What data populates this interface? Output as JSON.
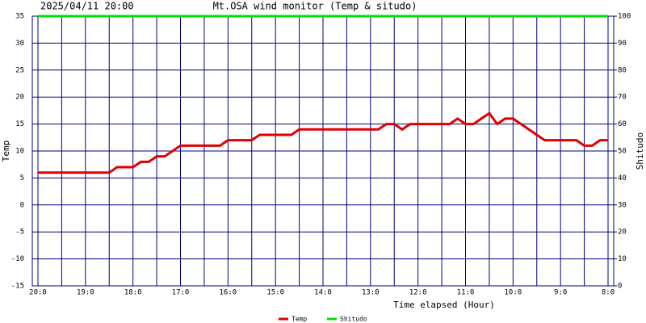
{
  "chart_data": {
    "type": "line",
    "title": "2025/04/11 20:00",
    "subtitle": "Mt.OSA wind monitor (Temp & situdo)",
    "x_label": "Time elapsed (Hour)",
    "y_label": "Temp",
    "y2_label": "Shitudo",
    "x": [
      0,
      10,
      20,
      30,
      40,
      50,
      60,
      70,
      80,
      90,
      100,
      110,
      120,
      130,
      140,
      150,
      160,
      170,
      180,
      190,
      200,
      210,
      220,
      230,
      240,
      250,
      260,
      270,
      280,
      290,
      300,
      310,
      320,
      330,
      340,
      350,
      360,
      370,
      380,
      390,
      400,
      410,
      420,
      430,
      440,
      450,
      460,
      470,
      480,
      490,
      500,
      510,
      520,
      530,
      540,
      550,
      560,
      570,
      580,
      590,
      600,
      610,
      620,
      630,
      640,
      650,
      660,
      670,
      680,
      690,
      700,
      710,
      720
    ],
    "series": [
      {
        "name": "Temp",
        "color": "#e00000",
        "values": [
          6,
          6,
          6,
          6,
          6,
          6,
          6,
          6,
          6,
          6,
          7,
          7,
          7,
          8,
          8,
          9,
          9,
          10,
          11,
          11,
          11,
          11,
          11,
          11,
          12,
          12,
          12,
          12,
          13,
          13,
          13,
          13,
          13,
          14,
          14,
          14,
          14,
          14,
          14,
          14,
          14,
          14,
          14,
          14,
          15,
          15,
          14,
          15,
          15,
          15,
          15,
          15,
          15,
          16,
          15,
          15,
          16,
          17,
          15,
          16,
          16,
          15,
          14,
          13,
          12,
          12,
          12,
          12,
          12,
          11,
          11,
          12,
          12
        ]
      },
      {
        "name": "Shitudo",
        "color": "#00e000",
        "axis": "y2",
        "values": [
          100,
          100,
          100,
          100,
          100,
          100,
          100,
          100,
          100,
          100,
          100,
          100,
          100,
          100,
          100,
          100,
          100,
          100,
          100,
          100,
          100,
          100,
          100,
          100,
          100,
          100,
          100,
          100,
          100,
          100,
          100,
          100,
          100,
          100,
          100,
          100,
          100,
          100,
          100,
          100,
          100,
          100,
          100,
          100,
          100,
          100,
          100,
          100,
          100,
          100,
          100,
          100,
          100,
          100,
          100,
          100,
          100,
          100,
          100,
          100,
          100,
          100,
          100,
          100,
          100,
          100,
          100,
          100,
          100,
          100,
          100,
          100,
          100
        ]
      }
    ],
    "xlim": [
      0,
      720
    ],
    "xticks": [
      {
        "value": 0,
        "label": "20:0"
      },
      {
        "value": 60,
        "label": "19:0"
      },
      {
        "value": 120,
        "label": "18:0"
      },
      {
        "value": 180,
        "label": "17:0"
      },
      {
        "value": 240,
        "label": "16:0"
      },
      {
        "value": 300,
        "label": "15:0"
      },
      {
        "value": 360,
        "label": "14:0"
      },
      {
        "value": 420,
        "label": "13:0"
      },
      {
        "value": 480,
        "label": "12:0"
      },
      {
        "value": 540,
        "label": "11:0"
      },
      {
        "value": 600,
        "label": "10:0"
      },
      {
        "value": 660,
        "label": "9:0"
      },
      {
        "value": 720,
        "label": "8:0"
      }
    ],
    "xminorticks": [
      30,
      90,
      150,
      210,
      270,
      330,
      390,
      450,
      510,
      570,
      630,
      690
    ],
    "ylim": [
      -15,
      35
    ],
    "yticks": [
      -15,
      -10,
      -5,
      0,
      5,
      10,
      15,
      20,
      25,
      30,
      35
    ],
    "y2lim": [
      0,
      100
    ],
    "y2ticks": [
      0,
      10,
      20,
      30,
      40,
      50,
      60,
      70,
      80,
      90,
      100
    ],
    "grid": true,
    "grid_color": "#000080",
    "legend": "bottom"
  }
}
